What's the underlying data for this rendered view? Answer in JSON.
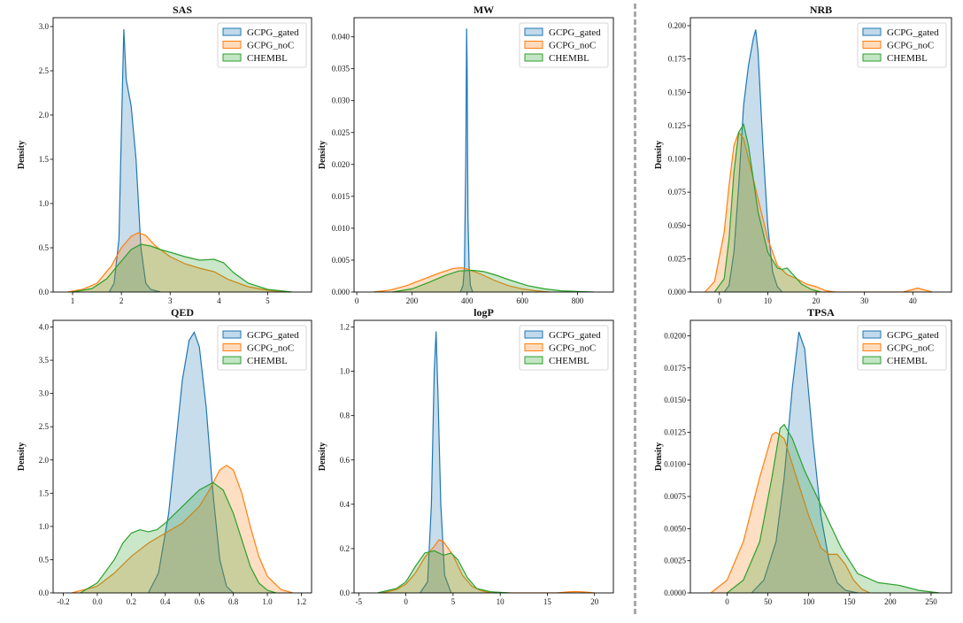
{
  "colors": {
    "GCPG_gated": "#1f77b4",
    "GCPG_noC": "#ff7f0e",
    "CHEMBL": "#2ca02c",
    "divider": "#a8a8a8"
  },
  "legend": [
    "GCPG_gated",
    "GCPG_noC",
    "CHEMBL"
  ],
  "chart_data": [
    {
      "type": "area",
      "title": "SAS",
      "ylabel": "Density",
      "xlim": [
        0.6,
        5.9
      ],
      "ylim": [
        0,
        3.1
      ],
      "xticks": [
        1,
        2,
        3,
        4,
        5
      ],
      "xtick_labels": [
        "1",
        "2",
        "3",
        "4",
        "5"
      ],
      "yticks": [
        0,
        0.5,
        1.0,
        1.5,
        2.0,
        2.5,
        3.0
      ],
      "ytick_labels": [
        "0.0",
        "0.5",
        "1.0",
        "1.5",
        "2.0",
        "2.5",
        "3.0"
      ],
      "legend_position": "upper right",
      "series": [
        {
          "name": "GCPG_gated",
          "x": [
            1.75,
            1.85,
            1.95,
            2.0,
            2.05,
            2.1,
            2.2,
            2.3,
            2.4,
            2.5,
            2.6,
            2.8
          ],
          "y": [
            0,
            0.1,
            0.6,
            1.8,
            2.97,
            2.4,
            2.1,
            1.5,
            0.5,
            0.1,
            0.03,
            0
          ]
        },
        {
          "name": "GCPG_noC",
          "x": [
            0.9,
            1.2,
            1.5,
            1.8,
            2.0,
            2.2,
            2.35,
            2.5,
            2.7,
            3.0,
            3.3,
            3.6,
            3.9,
            4.2,
            4.6,
            5.0,
            5.4
          ],
          "y": [
            0,
            0.03,
            0.1,
            0.3,
            0.5,
            0.63,
            0.67,
            0.64,
            0.52,
            0.4,
            0.32,
            0.27,
            0.23,
            0.14,
            0.06,
            0.02,
            0
          ]
        },
        {
          "name": "CHEMBL",
          "x": [
            1.0,
            1.4,
            1.7,
            2.0,
            2.2,
            2.4,
            2.6,
            2.8,
            3.0,
            3.3,
            3.6,
            3.9,
            4.1,
            4.3,
            4.6,
            5.0,
            5.5
          ],
          "y": [
            0,
            0.04,
            0.15,
            0.35,
            0.48,
            0.54,
            0.52,
            0.48,
            0.45,
            0.4,
            0.36,
            0.37,
            0.33,
            0.22,
            0.1,
            0.03,
            0
          ]
        }
      ]
    },
    {
      "type": "area",
      "title": "MW",
      "ylabel": "Density",
      "xlim": [
        -10,
        930
      ],
      "ylim": [
        0,
        0.043
      ],
      "xticks": [
        0,
        200,
        400,
        600,
        800
      ],
      "xtick_labels": [
        "0",
        "200",
        "400",
        "600",
        "800"
      ],
      "yticks": [
        0,
        0.005,
        0.01,
        0.015,
        0.02,
        0.025,
        0.03,
        0.035,
        0.04
      ],
      "ytick_labels": [
        "0.000",
        "0.005",
        "0.010",
        "0.015",
        "0.020",
        "0.025",
        "0.030",
        "0.035",
        "0.040"
      ],
      "legend_position": "upper right",
      "series": [
        {
          "name": "GCPG_gated",
          "x": [
            375,
            385,
            390,
            395,
            398,
            400,
            403,
            407,
            412,
            420
          ],
          "y": [
            0,
            0.001,
            0.004,
            0.02,
            0.0413,
            0.035,
            0.012,
            0.004,
            0.001,
            0
          ]
        },
        {
          "name": "GCPG_noC",
          "x": [
            60,
            120,
            180,
            240,
            300,
            350,
            380,
            400,
            450,
            500,
            550,
            600,
            650,
            700
          ],
          "y": [
            0,
            0.0003,
            0.001,
            0.002,
            0.003,
            0.0037,
            0.0038,
            0.0036,
            0.0028,
            0.0018,
            0.001,
            0.0005,
            0.0002,
            0
          ]
        },
        {
          "name": "CHEMBL",
          "x": [
            130,
            200,
            260,
            320,
            370,
            420,
            460,
            500,
            560,
            620,
            680,
            740,
            800,
            860
          ],
          "y": [
            0,
            0.0005,
            0.0015,
            0.0026,
            0.0033,
            0.0034,
            0.0032,
            0.0027,
            0.0018,
            0.001,
            0.0005,
            0.0002,
            0.0001,
            0
          ]
        }
      ]
    },
    {
      "type": "area",
      "title": "NRB",
      "ylabel": "Density",
      "xlim": [
        -6,
        48
      ],
      "ylim": [
        0,
        0.206
      ],
      "xticks": [
        0,
        10,
        20,
        30,
        40
      ],
      "xtick_labels": [
        "0",
        "10",
        "20",
        "30",
        "40"
      ],
      "yticks": [
        0,
        0.025,
        0.05,
        0.075,
        0.1,
        0.125,
        0.15,
        0.175,
        0.2
      ],
      "ytick_labels": [
        "0.000",
        "0.025",
        "0.050",
        "0.075",
        "0.100",
        "0.125",
        "0.150",
        "0.175",
        "0.200"
      ],
      "legend_position": "upper right",
      "series": [
        {
          "name": "GCPG_gated",
          "x": [
            1,
            2,
            3,
            4,
            5,
            6,
            7,
            7.5,
            8,
            9,
            10,
            11,
            12,
            13
          ],
          "y": [
            0,
            0.005,
            0.03,
            0.08,
            0.14,
            0.17,
            0.19,
            0.197,
            0.18,
            0.11,
            0.05,
            0.015,
            0.004,
            0
          ]
        },
        {
          "name": "GCPG_noC",
          "x": [
            -3,
            -1,
            1,
            2,
            3,
            4,
            5,
            6,
            8,
            10,
            12,
            14,
            16,
            18,
            20,
            22,
            24,
            38,
            40,
            41,
            42,
            44
          ],
          "y": [
            0,
            0.008,
            0.045,
            0.08,
            0.11,
            0.12,
            0.115,
            0.1,
            0.07,
            0.04,
            0.02,
            0.013,
            0.01,
            0.006,
            0.004,
            0.001,
            0,
            0,
            0.002,
            0.003,
            0.002,
            0
          ]
        },
        {
          "name": "CHEMBL",
          "x": [
            -1,
            1,
            2,
            3,
            4,
            5,
            6,
            8,
            10,
            12,
            13,
            14,
            15,
            17,
            19,
            21
          ],
          "y": [
            0,
            0.01,
            0.04,
            0.09,
            0.12,
            0.126,
            0.11,
            0.06,
            0.03,
            0.018,
            0.017,
            0.018,
            0.014,
            0.006,
            0.002,
            0
          ]
        }
      ]
    },
    {
      "type": "area",
      "title": "QED",
      "ylabel": "Density",
      "xlim": [
        -0.26,
        1.26
      ],
      "ylim": [
        0,
        4.1
      ],
      "xticks": [
        -0.2,
        0.0,
        0.2,
        0.4,
        0.6,
        0.8,
        1.0,
        1.2
      ],
      "xtick_labels": [
        "-0.2",
        "0.0",
        "0.2",
        "0.4",
        "0.6",
        "0.8",
        "1.0",
        "1.2"
      ],
      "yticks": [
        0,
        0.5,
        1.0,
        1.5,
        2.0,
        2.5,
        3.0,
        3.5,
        4.0
      ],
      "ytick_labels": [
        "0.0",
        "0.5",
        "1.0",
        "1.5",
        "2.0",
        "2.5",
        "3.0",
        "3.5",
        "4.0"
      ],
      "legend_position": "upper right",
      "series": [
        {
          "name": "GCPG_gated",
          "x": [
            0.3,
            0.36,
            0.42,
            0.46,
            0.5,
            0.54,
            0.57,
            0.6,
            0.64,
            0.68,
            0.72,
            0.76,
            0.8
          ],
          "y": [
            0,
            0.3,
            1.2,
            2.2,
            3.2,
            3.8,
            3.92,
            3.7,
            2.8,
            1.5,
            0.5,
            0.1,
            0
          ]
        },
        {
          "name": "GCPG_noC",
          "x": [
            -0.15,
            0.0,
            0.1,
            0.2,
            0.3,
            0.4,
            0.5,
            0.6,
            0.66,
            0.72,
            0.76,
            0.8,
            0.85,
            0.9,
            0.95,
            1.0,
            1.08,
            1.15
          ],
          "y": [
            0,
            0.1,
            0.3,
            0.55,
            0.75,
            0.9,
            1.05,
            1.3,
            1.55,
            1.85,
            1.92,
            1.85,
            1.5,
            1.0,
            0.55,
            0.25,
            0.05,
            0
          ]
        },
        {
          "name": "CHEMBL",
          "x": [
            -0.1,
            0.0,
            0.1,
            0.15,
            0.2,
            0.25,
            0.3,
            0.35,
            0.4,
            0.5,
            0.6,
            0.68,
            0.74,
            0.8,
            0.85,
            0.9,
            0.95,
            1.0,
            1.05
          ],
          "y": [
            0,
            0.15,
            0.5,
            0.75,
            0.9,
            0.95,
            0.92,
            0.95,
            1.05,
            1.3,
            1.55,
            1.66,
            1.55,
            1.2,
            0.8,
            0.4,
            0.15,
            0.04,
            0
          ]
        }
      ]
    },
    {
      "type": "area",
      "title": "logP",
      "ylabel": "Density",
      "xlim": [
        -5.5,
        22
      ],
      "ylim": [
        0,
        1.23
      ],
      "xticks": [
        -5,
        0,
        5,
        10,
        15,
        20
      ],
      "xtick_labels": [
        "-5",
        "0",
        "5",
        "10",
        "15",
        "20"
      ],
      "yticks": [
        0,
        0.2,
        0.4,
        0.6,
        0.8,
        1.0,
        1.2
      ],
      "ytick_labels": [
        "0.0",
        "0.2",
        "0.4",
        "0.6",
        "0.8",
        "1.0",
        "1.2"
      ],
      "legend_position": "upper right",
      "series": [
        {
          "name": "GCPG_gated",
          "x": [
            1.5,
            2.3,
            2.7,
            3.0,
            3.2,
            3.4,
            3.7,
            4.1,
            4.8
          ],
          "y": [
            0,
            0.05,
            0.4,
            1.0,
            1.18,
            0.9,
            0.4,
            0.08,
            0
          ]
        },
        {
          "name": "GCPG_noC",
          "x": [
            -2.5,
            -1,
            0,
            1,
            2,
            3,
            3.5,
            4,
            5,
            6,
            7,
            8,
            9,
            16,
            17,
            18,
            19,
            20
          ],
          "y": [
            0,
            0.015,
            0.04,
            0.09,
            0.16,
            0.21,
            0.24,
            0.23,
            0.17,
            0.08,
            0.03,
            0.01,
            0,
            0,
            0.004,
            0.006,
            0.004,
            0
          ]
        },
        {
          "name": "CHEMBL",
          "x": [
            -3,
            -1,
            0,
            1,
            2,
            3,
            4,
            4.8,
            5.5,
            6.5,
            7.5,
            9,
            11
          ],
          "y": [
            0,
            0.02,
            0.05,
            0.12,
            0.18,
            0.19,
            0.17,
            0.18,
            0.15,
            0.07,
            0.02,
            0.005,
            0
          ]
        }
      ]
    },
    {
      "type": "area",
      "title": "TPSA",
      "ylabel": "Density",
      "xlim": [
        -45,
        275
      ],
      "ylim": [
        0,
        0.0212
      ],
      "xticks": [
        0,
        50,
        100,
        150,
        200,
        250
      ],
      "xtick_labels": [
        "0",
        "50",
        "100",
        "150",
        "200",
        "250"
      ],
      "yticks": [
        0,
        0.0025,
        0.005,
        0.0075,
        0.01,
        0.0125,
        0.015,
        0.0175,
        0.02
      ],
      "ytick_labels": [
        "0.0000",
        "0.0025",
        "0.0050",
        "0.0075",
        "0.0100",
        "0.0125",
        "0.0150",
        "0.0175",
        "0.0200"
      ],
      "legend_position": "upper right",
      "series": [
        {
          "name": "GCPG_gated",
          "x": [
            30,
            45,
            60,
            70,
            80,
            88,
            95,
            105,
            115,
            125,
            135,
            145,
            160
          ],
          "y": [
            0,
            0.001,
            0.004,
            0.009,
            0.016,
            0.0203,
            0.019,
            0.012,
            0.006,
            0.0025,
            0.0008,
            0.0002,
            0
          ]
        },
        {
          "name": "GCPG_noC",
          "x": [
            -20,
            0,
            20,
            40,
            55,
            60,
            70,
            85,
            100,
            115,
            125,
            135,
            145,
            155,
            165,
            175
          ],
          "y": [
            0,
            0.001,
            0.004,
            0.009,
            0.0123,
            0.0125,
            0.012,
            0.009,
            0.006,
            0.0035,
            0.003,
            0.003,
            0.0022,
            0.001,
            0.0003,
            0
          ]
        },
        {
          "name": "CHEMBL",
          "x": [
            0,
            20,
            40,
            55,
            65,
            70,
            80,
            95,
            110,
            125,
            140,
            160,
            185,
            210,
            235,
            260
          ],
          "y": [
            0,
            0.001,
            0.004,
            0.009,
            0.0128,
            0.0131,
            0.012,
            0.0095,
            0.0075,
            0.0055,
            0.0035,
            0.0015,
            0.0008,
            0.0006,
            0.0002,
            0
          ]
        }
      ]
    }
  ]
}
